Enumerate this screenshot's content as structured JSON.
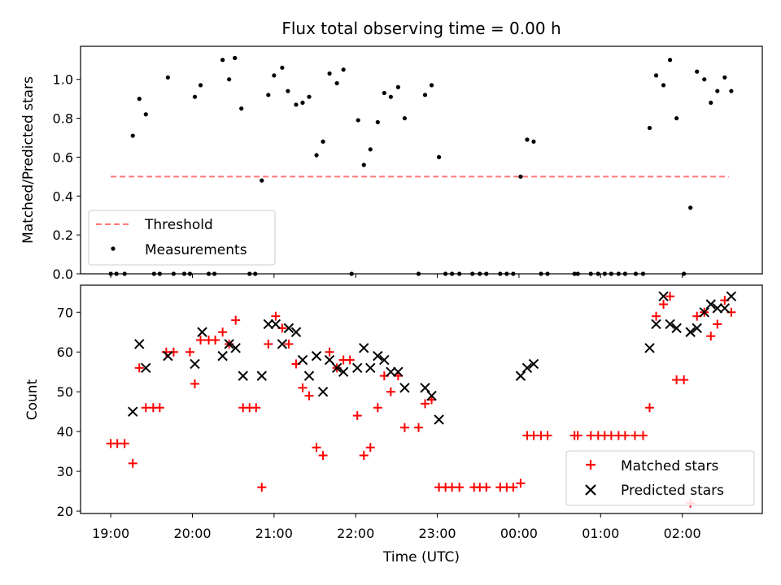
{
  "chart_data": [
    {
      "type": "scatter",
      "title": "Flux total observing time = 0.00 h",
      "ylabel": "Matched/Predicted stars",
      "xlabel": "",
      "ylim": [
        0,
        1.17
      ],
      "yticks": [
        0.0,
        0.2,
        0.4,
        0.6,
        0.8,
        1.0
      ],
      "ytick_labels": [
        "0.0",
        "0.2",
        "0.4",
        "0.6",
        "0.8",
        "1.0"
      ],
      "grid": false,
      "legend_position": "lower-left",
      "threshold": {
        "name": "Threshold",
        "value": 0.5,
        "x_range": [
          19.0,
          26.57
        ],
        "color": "#ff7777",
        "style": "dashed"
      },
      "series": [
        {
          "name": "Measurements",
          "marker": "dot",
          "color": "#000000",
          "points": [
            [
              19.0,
              0
            ],
            [
              19.07,
              0
            ],
            [
              19.17,
              0
            ],
            [
              19.27,
              0.71
            ],
            [
              19.35,
              0.9
            ],
            [
              19.43,
              0.82
            ],
            [
              19.53,
              0
            ],
            [
              19.6,
              0
            ],
            [
              19.7,
              1.01
            ],
            [
              19.77,
              0
            ],
            [
              19.9,
              0
            ],
            [
              19.97,
              0
            ],
            [
              20.03,
              0.91
            ],
            [
              20.1,
              0.97
            ],
            [
              20.2,
              0
            ],
            [
              20.27,
              0
            ],
            [
              20.37,
              1.1
            ],
            [
              20.45,
              1.0
            ],
            [
              20.52,
              1.11
            ],
            [
              20.6,
              0.85
            ],
            [
              20.7,
              0
            ],
            [
              20.77,
              0
            ],
            [
              20.85,
              0.48
            ],
            [
              20.93,
              0.92
            ],
            [
              21.0,
              1.02
            ],
            [
              21.1,
              1.06
            ],
            [
              21.17,
              0.94
            ],
            [
              21.27,
              0.87
            ],
            [
              21.35,
              0.88
            ],
            [
              21.43,
              0.91
            ],
            [
              21.52,
              0.61
            ],
            [
              21.6,
              0.68
            ],
            [
              21.68,
              1.03
            ],
            [
              21.77,
              0.98
            ],
            [
              21.85,
              1.05
            ],
            [
              21.95,
              0
            ],
            [
              22.03,
              0.79
            ],
            [
              22.1,
              0.56
            ],
            [
              22.18,
              0.64
            ],
            [
              22.27,
              0.78
            ],
            [
              22.35,
              0.93
            ],
            [
              22.43,
              0.91
            ],
            [
              22.52,
              0.96
            ],
            [
              22.6,
              0.8
            ],
            [
              22.77,
              0
            ],
            [
              22.85,
              0.92
            ],
            [
              22.93,
              0.97
            ],
            [
              23.02,
              0.6
            ],
            [
              23.1,
              0
            ],
            [
              23.18,
              0
            ],
            [
              23.27,
              0
            ],
            [
              23.43,
              0
            ],
            [
              23.52,
              0
            ],
            [
              23.6,
              0
            ],
            [
              23.77,
              0
            ],
            [
              23.85,
              0
            ],
            [
              23.93,
              0
            ],
            [
              24.02,
              0.5
            ],
            [
              24.1,
              0.69
            ],
            [
              24.18,
              0.68
            ],
            [
              24.27,
              0
            ],
            [
              24.35,
              0
            ],
            [
              24.68,
              0
            ],
            [
              24.72,
              0
            ],
            [
              24.88,
              0
            ],
            [
              24.97,
              0
            ],
            [
              25.05,
              0
            ],
            [
              25.13,
              0
            ],
            [
              25.22,
              0
            ],
            [
              25.3,
              0
            ],
            [
              25.43,
              0
            ],
            [
              25.52,
              0
            ],
            [
              25.6,
              0.75
            ],
            [
              25.68,
              1.02
            ],
            [
              25.77,
              0.97
            ],
            [
              25.85,
              1.1
            ],
            [
              25.93,
              0.8
            ],
            [
              26.02,
              0
            ],
            [
              26.1,
              0.34
            ],
            [
              26.18,
              1.04
            ],
            [
              26.27,
              1.0
            ],
            [
              26.35,
              0.88
            ],
            [
              26.43,
              0.94
            ],
            [
              26.52,
              1.01
            ],
            [
              26.6,
              0.94
            ]
          ]
        }
      ]
    },
    {
      "type": "scatter",
      "title": "",
      "ylabel": "Count",
      "xlabel": "Time (UTC)",
      "xlim": [
        18.63,
        26.98
      ],
      "xticks": [
        19,
        20,
        21,
        22,
        23,
        24,
        25,
        26
      ],
      "xtick_labels": [
        "19:00",
        "20:00",
        "21:00",
        "22:00",
        "23:00",
        "00:00",
        "01:00",
        "02:00"
      ],
      "ylim": [
        19.4,
        76.8
      ],
      "yticks": [
        20,
        30,
        40,
        50,
        60,
        70
      ],
      "ytick_labels": [
        "20",
        "30",
        "40",
        "50",
        "60",
        "70"
      ],
      "grid": false,
      "legend_position": "lower-right",
      "series": [
        {
          "name": "Matched stars",
          "marker": "plus",
          "color": "#ff0000",
          "points": [
            [
              19.0,
              37
            ],
            [
              19.08,
              37
            ],
            [
              19.17,
              37
            ],
            [
              19.27,
              32
            ],
            [
              19.35,
              56
            ],
            [
              19.43,
              46
            ],
            [
              19.52,
              46
            ],
            [
              19.6,
              46
            ],
            [
              19.68,
              60
            ],
            [
              19.77,
              60
            ],
            [
              19.97,
              60
            ],
            [
              20.03,
              52
            ],
            [
              20.1,
              63
            ],
            [
              20.2,
              63
            ],
            [
              20.28,
              63
            ],
            [
              20.37,
              65
            ],
            [
              20.45,
              62
            ],
            [
              20.53,
              68
            ],
            [
              20.62,
              46
            ],
            [
              20.7,
              46
            ],
            [
              20.78,
              46
            ],
            [
              20.85,
              26
            ],
            [
              20.93,
              62
            ],
            [
              21.02,
              69
            ],
            [
              21.1,
              66
            ],
            [
              21.18,
              62
            ],
            [
              21.27,
              57
            ],
            [
              21.35,
              51
            ],
            [
              21.43,
              49
            ],
            [
              21.52,
              36
            ],
            [
              21.6,
              34
            ],
            [
              21.68,
              60
            ],
            [
              21.77,
              56
            ],
            [
              21.85,
              58
            ],
            [
              21.93,
              58
            ],
            [
              22.02,
              44
            ],
            [
              22.1,
              34
            ],
            [
              22.18,
              36
            ],
            [
              22.27,
              46
            ],
            [
              22.35,
              54
            ],
            [
              22.43,
              50
            ],
            [
              22.52,
              54
            ],
            [
              22.6,
              41
            ],
            [
              22.77,
              41
            ],
            [
              22.85,
              47
            ],
            [
              22.93,
              48
            ],
            [
              23.02,
              26
            ],
            [
              23.1,
              26
            ],
            [
              23.18,
              26
            ],
            [
              23.27,
              26
            ],
            [
              23.45,
              26
            ],
            [
              23.52,
              26
            ],
            [
              23.6,
              26
            ],
            [
              23.77,
              26
            ],
            [
              23.85,
              26
            ],
            [
              23.93,
              26
            ],
            [
              24.02,
              27
            ],
            [
              24.1,
              39
            ],
            [
              24.18,
              39
            ],
            [
              24.27,
              39
            ],
            [
              24.35,
              39
            ],
            [
              24.68,
              39
            ],
            [
              24.72,
              39
            ],
            [
              24.88,
              39
            ],
            [
              24.97,
              39
            ],
            [
              25.05,
              39
            ],
            [
              25.13,
              39
            ],
            [
              25.22,
              39
            ],
            [
              25.3,
              39
            ],
            [
              25.42,
              39
            ],
            [
              25.52,
              39
            ],
            [
              25.6,
              46
            ],
            [
              25.68,
              69
            ],
            [
              25.77,
              72
            ],
            [
              25.85,
              74
            ],
            [
              25.93,
              53
            ],
            [
              26.02,
              53
            ],
            [
              26.1,
              22
            ],
            [
              26.18,
              69
            ],
            [
              26.27,
              70
            ],
            [
              26.35,
              64
            ],
            [
              26.43,
              67
            ],
            [
              26.52,
              73
            ],
            [
              26.6,
              70
            ]
          ]
        },
        {
          "name": "Predicted stars",
          "marker": "x",
          "color": "#000000",
          "points": [
            [
              19.27,
              45
            ],
            [
              19.35,
              62
            ],
            [
              19.43,
              56
            ],
            [
              19.7,
              59
            ],
            [
              20.03,
              57
            ],
            [
              20.12,
              65
            ],
            [
              20.37,
              59
            ],
            [
              20.45,
              62
            ],
            [
              20.53,
              61
            ],
            [
              20.62,
              54
            ],
            [
              20.85,
              54
            ],
            [
              20.93,
              67
            ],
            [
              21.02,
              67
            ],
            [
              21.1,
              62
            ],
            [
              21.18,
              66
            ],
            [
              21.27,
              65
            ],
            [
              21.35,
              58
            ],
            [
              21.43,
              54
            ],
            [
              21.52,
              59
            ],
            [
              21.6,
              50
            ],
            [
              21.68,
              58
            ],
            [
              21.77,
              56
            ],
            [
              21.85,
              55
            ],
            [
              22.02,
              56
            ],
            [
              22.1,
              61
            ],
            [
              22.18,
              56
            ],
            [
              22.27,
              59
            ],
            [
              22.35,
              58
            ],
            [
              22.43,
              55
            ],
            [
              22.52,
              55
            ],
            [
              22.6,
              51
            ],
            [
              22.85,
              51
            ],
            [
              22.93,
              49
            ],
            [
              23.02,
              43
            ],
            [
              24.02,
              54
            ],
            [
              24.1,
              56
            ],
            [
              24.18,
              57
            ],
            [
              25.6,
              61
            ],
            [
              25.68,
              67
            ],
            [
              25.77,
              74
            ],
            [
              25.85,
              67
            ],
            [
              25.93,
              66
            ],
            [
              26.1,
              65
            ],
            [
              26.18,
              66
            ],
            [
              26.27,
              70
            ],
            [
              26.35,
              72
            ],
            [
              26.43,
              71
            ],
            [
              26.52,
              71
            ],
            [
              26.6,
              74
            ]
          ]
        }
      ]
    }
  ]
}
